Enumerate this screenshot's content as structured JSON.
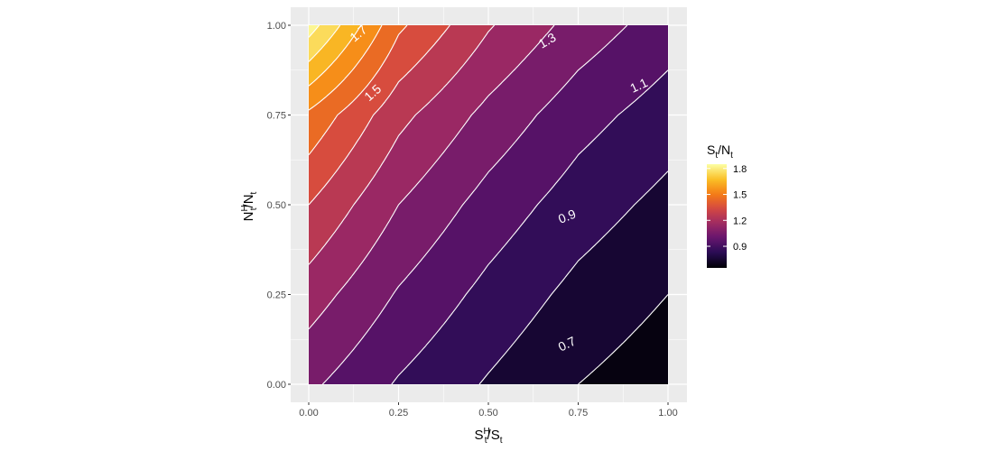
{
  "chart_data": {
    "type": "contour",
    "title": "",
    "x": {
      "label": "S_t^H/S_t",
      "label_base": "S",
      "label_sup": "H",
      "label_sub": "t",
      "label_rest_base": "/S",
      "label_rest_sub": "t",
      "range": [
        0,
        1
      ],
      "ticks": [
        0,
        0.25,
        0.5,
        0.75,
        1
      ],
      "tick_labels": [
        "0.00",
        "0.25",
        "0.50",
        "0.75",
        "1.00"
      ]
    },
    "y": {
      "label": "N_t^H/N_t",
      "label_base": "N",
      "label_sup": "H",
      "label_sub": "t",
      "label_rest_base": "/N",
      "label_rest_sub": "t",
      "range": [
        0,
        1
      ],
      "ticks": [
        0,
        0.25,
        0.5,
        0.75,
        1
      ],
      "tick_labels": [
        "0.00",
        "0.25",
        "0.50",
        "0.75",
        "1.00"
      ]
    },
    "fill": {
      "label": "S_t/N_t",
      "title_a": "S",
      "title_a_sub": "t",
      "title_b": "/N",
      "title_b_sub": "t",
      "palette": "inferno",
      "range": [
        0.65,
        1.85
      ],
      "breaks": [
        0.9,
        1.2,
        1.5,
        1.8
      ],
      "break_labels": [
        "0.9",
        "1.2",
        "1.5",
        "1.8"
      ]
    },
    "contour_levels": [
      0.7,
      0.8,
      0.9,
      1.0,
      1.1,
      1.2,
      1.3,
      1.4,
      1.5,
      1.6,
      1.7,
      1.8
    ],
    "contour_labels": [
      {
        "text": "1.7",
        "x": 0.14,
        "y": 0.975,
        "angle": -40
      },
      {
        "text": "1.5",
        "x": 0.18,
        "y": 0.81,
        "angle": -42
      },
      {
        "text": "1.3",
        "x": 0.665,
        "y": 0.955,
        "angle": -30
      },
      {
        "text": "1.1",
        "x": 0.92,
        "y": 0.83,
        "angle": -25
      },
      {
        "text": "0.9",
        "x": 0.72,
        "y": 0.465,
        "angle": -22
      },
      {
        "text": "0.7",
        "x": 0.72,
        "y": 0.11,
        "angle": -26
      }
    ],
    "surface": {
      "grid_x": [
        0,
        0.25,
        0.5,
        0.75,
        1
      ],
      "grid_y": [
        0,
        0.25,
        0.5,
        0.75,
        1
      ],
      "z": [
        [
          1.02,
          0.89,
          0.79,
          0.7,
          0.64
        ],
        [
          1.15,
          0.99,
          0.87,
          0.77,
          0.7
        ],
        [
          1.3,
          1.1,
          0.96,
          0.85,
          0.77
        ],
        [
          1.48,
          1.23,
          1.07,
          0.94,
          0.85
        ],
        [
          1.85,
          1.42,
          1.21,
          1.06,
          0.95
        ]
      ]
    }
  }
}
